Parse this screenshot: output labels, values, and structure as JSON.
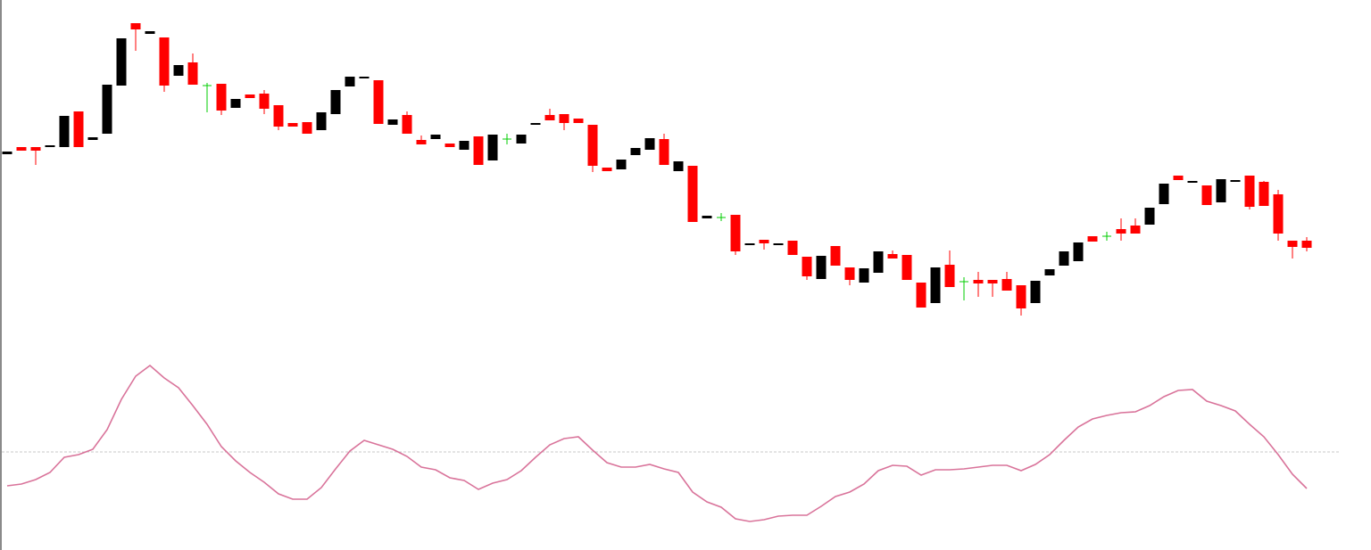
{
  "chart_data": [
    {
      "type": "candlestick",
      "up_color": "#000000",
      "down_color": "#ff0000",
      "doji_color": "#00cc00",
      "ylim": [
        0,
        400
      ],
      "open": [
        227,
        235,
        235,
        235,
        235,
        275,
        243,
        250,
        304,
        374,
        362,
        358,
        315,
        330,
        304,
        306,
        279,
        294,
        295,
        282,
        262,
        263,
        254,
        272,
        303,
        312,
        310,
        260,
        271,
        243,
        244,
        239,
        232,
        247,
        220,
        244,
        239,
        260,
        271,
        272,
        267,
        260,
        212,
        210,
        226,
        232,
        244,
        208,
        214,
        155,
        156,
        159,
        125,
        131,
        125,
        130,
        112,
        87,
        124,
        100,
        83,
        94,
        115,
        114,
        83,
        60,
        103,
        84,
        86,
        86,
        87,
        80,
        60,
        91,
        102,
        107,
        135,
        135,
        143,
        147,
        148,
        171,
        203,
        195,
        192,
        173,
        196,
        203,
        196,
        182,
        130,
        130
      ],
      "high": [
        230,
        235,
        235,
        237,
        270,
        275,
        246,
        305,
        357,
        374,
        365,
        358,
        327,
        340,
        307,
        306,
        289,
        294,
        299,
        282,
        262,
        263,
        274,
        299,
        314,
        314,
        310,
        266,
        275,
        248,
        249,
        239,
        242,
        247,
        249,
        250,
        249,
        262,
        278,
        272,
        267,
        260,
        212,
        221,
        234,
        245,
        250,
        219,
        214,
        158,
        161,
        159,
        127,
        131,
        127,
        130,
        112,
        113,
        124,
        100,
        99,
        118,
        119,
        114,
        83,
        100,
        119,
        89,
        95,
        86,
        95,
        80,
        85,
        98,
        118,
        128,
        135,
        140,
        155,
        155,
        167,
        194,
        203,
        197,
        192,
        199,
        198,
        203,
        197,
        187,
        130,
        134
      ],
      "low": [
        227,
        231,
        215,
        235,
        235,
        235,
        243,
        250,
        304,
        343,
        362,
        297,
        315,
        305,
        274,
        271,
        279,
        290,
        272,
        254,
        258,
        250,
        254,
        272,
        303,
        312,
        261,
        260,
        250,
        238,
        244,
        235,
        232,
        215,
        220,
        238,
        239,
        260,
        265,
        254,
        262,
        207,
        208,
        210,
        226,
        232,
        215,
        208,
        151,
        155,
        152,
        114,
        125,
        120,
        125,
        114,
        86,
        87,
        102,
        80,
        83,
        94,
        110,
        86,
        55,
        60,
        78,
        63,
        67,
        67,
        74,
        46,
        60,
        91,
        102,
        107,
        129,
        130,
        130,
        138,
        148,
        171,
        198,
        195,
        170,
        173,
        196,
        165,
        169,
        130,
        110,
        118
      ],
      "close": [
        230,
        231,
        231,
        237,
        270,
        235,
        246,
        305,
        357,
        367,
        365,
        304,
        327,
        305,
        304,
        276,
        289,
        290,
        278,
        258,
        258,
        250,
        274,
        299,
        314,
        314,
        261,
        266,
        250,
        238,
        249,
        235,
        242,
        215,
        249,
        244,
        249,
        262,
        265,
        262,
        262,
        214,
        208,
        221,
        234,
        245,
        215,
        219,
        151,
        158,
        156,
        118,
        127,
        127,
        127,
        114,
        90,
        113,
        102,
        86,
        99,
        118,
        110,
        86,
        55,
        100,
        78,
        84,
        82,
        82,
        74,
        54,
        85,
        98,
        118,
        128,
        129,
        135,
        138,
        138,
        167,
        194,
        198,
        197,
        170,
        199,
        198,
        168,
        169,
        138,
        123,
        122
      ]
    },
    {
      "type": "line",
      "color": "#d9739a",
      "ylim": [
        -100,
        100
      ],
      "levels": [
        0
      ],
      "level_color": "#c8c8c8",
      "values": [
        -38,
        -36,
        -31,
        -23,
        -6,
        -3,
        3,
        25,
        59,
        85,
        97,
        83,
        72,
        52,
        31,
        6,
        -10,
        -23,
        -34,
        -47,
        -53,
        -53,
        -40,
        -19,
        1,
        13,
        8,
        3,
        -5,
        -17,
        -20,
        -29,
        -32,
        -42,
        -35,
        -31,
        -21,
        -6,
        8,
        15,
        17,
        2,
        -12,
        -17,
        -17,
        -14,
        -19,
        -23,
        -45,
        -56,
        -62,
        -75,
        -78,
        -76,
        -72,
        -71,
        -71,
        -61,
        -50,
        -45,
        -36,
        -21,
        -15,
        -16,
        -26,
        -20,
        -20,
        -19,
        -17,
        -15,
        -15,
        -21,
        -14,
        -3,
        13,
        28,
        37,
        41,
        44,
        45,
        52,
        62,
        69,
        70,
        57,
        52,
        46,
        31,
        17,
        -3,
        -25,
        -41
      ]
    }
  ]
}
